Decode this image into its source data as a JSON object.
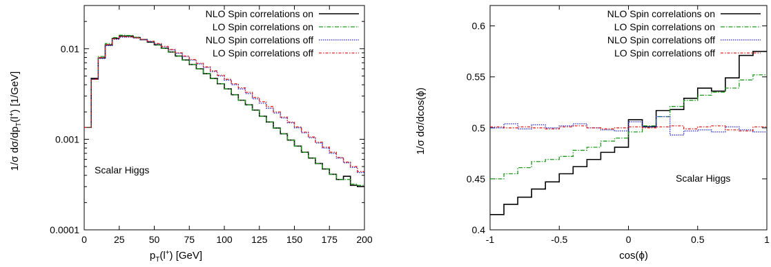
{
  "chart_data": [
    {
      "type": "line",
      "step": true,
      "yscale": "log",
      "xlabel_main": "p",
      "xlabel_sub": "T",
      "xlabel_rest": "(l",
      "xlabel_sup": "+",
      "xlabel_unit": ") [GeV]",
      "ylabel_main": "1/σ dσ/dp",
      "ylabel_sub": "T",
      "ylabel_rest": "(l",
      "ylabel_sup": "+",
      "ylabel_unit": ") [1/GeV]",
      "annotation": "Scalar Higgs",
      "legend_position": "top-right",
      "xlim": [
        0,
        200
      ],
      "ylim": [
        0.0001,
        0.03
      ],
      "xticks": [
        0,
        25,
        50,
        75,
        100,
        125,
        150,
        175,
        200
      ],
      "xtick_labels": [
        "0",
        "25",
        "50",
        "75",
        "100",
        "125",
        "150",
        "175",
        "200"
      ],
      "yticks": [
        0.0001,
        0.001,
        0.01
      ],
      "ytick_labels": [
        "0.0001",
        "0.001",
        "0.01"
      ],
      "bin_edges": [
        0,
        5,
        10,
        15,
        20,
        25,
        30,
        35,
        40,
        45,
        50,
        55,
        60,
        65,
        70,
        75,
        80,
        85,
        90,
        95,
        100,
        105,
        110,
        115,
        120,
        125,
        130,
        135,
        140,
        145,
        150,
        155,
        160,
        165,
        170,
        175,
        180,
        185,
        190,
        195,
        200
      ],
      "series": [
        {
          "name": "NLO  Spin correlations on",
          "color": "#000000",
          "dash": "",
          "width": 1.6,
          "values": [
            0.00135,
            0.0047,
            0.0079,
            0.011,
            0.013,
            0.0138,
            0.0138,
            0.0133,
            0.0126,
            0.0118,
            0.011,
            0.0101,
            0.0092,
            0.0083,
            0.0075,
            0.0067,
            0.006,
            0.0053,
            0.0047,
            0.0041,
            0.0036,
            0.0031,
            0.0027,
            0.0024,
            0.0021,
            0.0018,
            0.00155,
            0.00133,
            0.00115,
            0.00098,
            0.00084,
            0.00072,
            0.00062,
            0.00054,
            0.00047,
            0.00041,
            0.00036,
            0.00039,
            0.00031,
            0.0003
          ]
        },
        {
          "name": "LO  Spin correlations on",
          "color": "#1a9a1a",
          "dash": "6,2,1.5,2",
          "width": 1.3,
          "values": [
            0.00135,
            0.0046,
            0.0082,
            0.0114,
            0.0133,
            0.0141,
            0.014,
            0.0134,
            0.0127,
            0.0119,
            0.011,
            0.0101,
            0.0092,
            0.0083,
            0.0075,
            0.0067,
            0.006,
            0.0053,
            0.0047,
            0.0041,
            0.0036,
            0.0031,
            0.0027,
            0.0024,
            0.0021,
            0.0018,
            0.00155,
            0.00133,
            0.00115,
            0.00098,
            0.00084,
            0.00072,
            0.00062,
            0.00054,
            0.00047,
            0.00041,
            0.00036,
            0.00036,
            0.00032,
            0.00031
          ]
        },
        {
          "name": "NLO  Spin correlations off",
          "color": "#1f1fd0",
          "dash": "1.5,1.5",
          "width": 1.3,
          "values": [
            0.00135,
            0.0046,
            0.0078,
            0.0108,
            0.0127,
            0.0134,
            0.0134,
            0.0131,
            0.0126,
            0.012,
            0.0113,
            0.0105,
            0.0097,
            0.0089,
            0.0082,
            0.0075,
            0.0068,
            0.0062,
            0.0056,
            0.005,
            0.0045,
            0.004,
            0.0036,
            0.0032,
            0.0028,
            0.0025,
            0.0022,
            0.00195,
            0.00172,
            0.00152,
            0.00134,
            0.00118,
            0.00104,
            0.00091,
            0.0008,
            0.0007,
            0.00062,
            0.00055,
            0.00049,
            0.00043
          ]
        },
        {
          "name": "LO  Spin correlations off",
          "color": "#e02020",
          "dash": "4,2,1.5,2",
          "width": 1.3,
          "values": [
            0.00135,
            0.0046,
            0.008,
            0.0111,
            0.0129,
            0.0136,
            0.0135,
            0.0132,
            0.0127,
            0.0121,
            0.0114,
            0.0106,
            0.0098,
            0.009,
            0.0083,
            0.0076,
            0.0069,
            0.0063,
            0.0057,
            0.0051,
            0.0046,
            0.0041,
            0.0037,
            0.0033,
            0.0029,
            0.0026,
            0.0023,
            0.002,
            0.00176,
            0.00155,
            0.00137,
            0.0012,
            0.00106,
            0.00093,
            0.00082,
            0.00072,
            0.00063,
            0.00056,
            0.0005,
            0.00044
          ]
        }
      ]
    },
    {
      "type": "line",
      "step": true,
      "yscale": "linear",
      "xlabel": "cos(ϕ)",
      "ylabel": "1/σ dσ/dcos(ϕ)",
      "annotation": "Scalar Higgs",
      "legend_position": "top-right",
      "xlim": [
        -1,
        1
      ],
      "ylim": [
        0.4,
        0.62
      ],
      "xticks": [
        -1,
        -0.5,
        0,
        0.5,
        1
      ],
      "xtick_labels": [
        "-1",
        "-0.5",
        "0",
        "0.5",
        "1"
      ],
      "yticks": [
        0.4,
        0.45,
        0.5,
        0.55,
        0.6
      ],
      "ytick_labels": [
        "0.4",
        "0.45",
        "0.5",
        "0.55",
        "0.6"
      ],
      "bin_edges": [
        -1,
        -0.9,
        -0.8,
        -0.7,
        -0.6,
        -0.5,
        -0.4,
        -0.3,
        -0.2,
        -0.1,
        0,
        0.1,
        0.2,
        0.3,
        0.4,
        0.5,
        0.6,
        0.7,
        0.8,
        0.9,
        1
      ],
      "series": [
        {
          "name": "NLO  Spin correlations on",
          "color": "#000000",
          "dash": "",
          "width": 1.6,
          "values": [
            0.415,
            0.425,
            0.432,
            0.44,
            0.447,
            0.455,
            0.462,
            0.469,
            0.476,
            0.481,
            0.508,
            0.501,
            0.517,
            0.518,
            0.529,
            0.539,
            0.536,
            0.549,
            0.571,
            0.575
          ]
        },
        {
          "name": "LO  Spin correlations on",
          "color": "#1a9a1a",
          "dash": "6,2,1.5,2",
          "width": 1.3,
          "values": [
            0.45,
            0.455,
            0.461,
            0.467,
            0.469,
            0.472,
            0.478,
            0.481,
            0.487,
            0.49,
            0.496,
            0.502,
            0.511,
            0.521,
            0.527,
            0.532,
            0.535,
            0.539,
            0.547,
            0.552
          ]
        },
        {
          "name": "NLO  Spin correlations off",
          "color": "#1f1fd0",
          "dash": "1.5,1.5",
          "width": 1.3,
          "values": [
            0.5,
            0.504,
            0.499,
            0.503,
            0.5,
            0.502,
            0.504,
            0.5,
            0.498,
            0.497,
            0.506,
            0.501,
            0.511,
            0.493,
            0.497,
            0.498,
            0.496,
            0.501,
            0.498,
            0.496
          ]
        },
        {
          "name": "LO  Spin correlations off",
          "color": "#e02020",
          "dash": "4,2,1.5,2",
          "width": 1.3,
          "values": [
            0.501,
            0.5,
            0.501,
            0.5,
            0.499,
            0.501,
            0.502,
            0.5,
            0.499,
            0.5,
            0.501,
            0.5,
            0.501,
            0.502,
            0.499,
            0.501,
            0.502,
            0.498,
            0.497,
            0.501
          ]
        }
      ]
    }
  ]
}
